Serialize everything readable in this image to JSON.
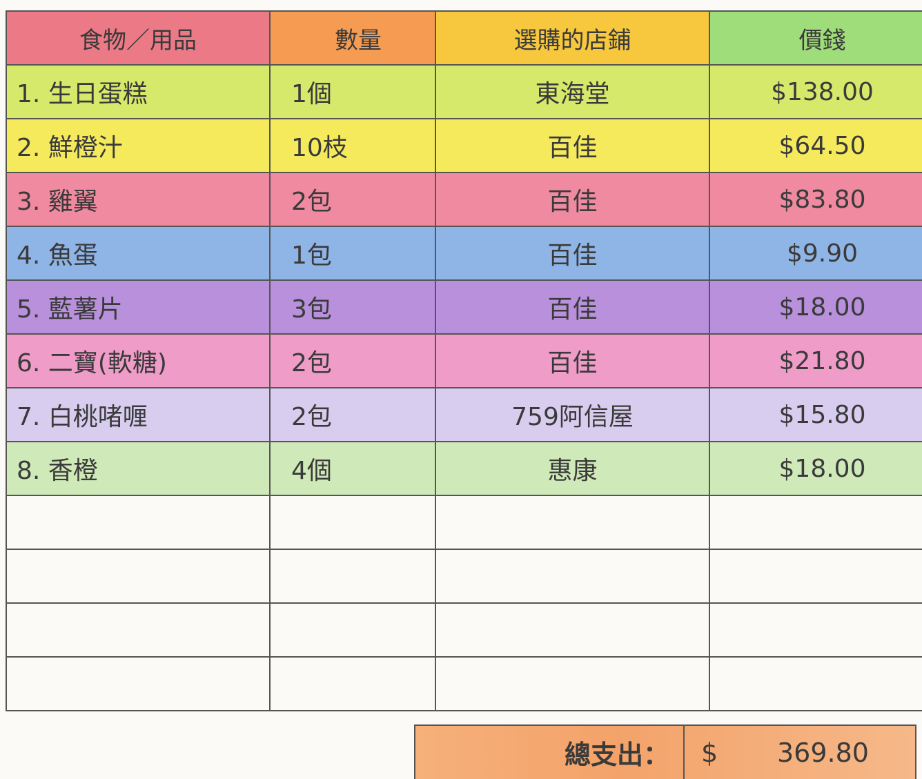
{
  "table": {
    "header": [
      "食物／用品",
      "數量",
      "選購的店鋪",
      "價錢"
    ],
    "rows": [
      [
        "1. 生日蛋糕",
        "1個",
        "東海堂",
        "$138.00"
      ],
      [
        "2. 鮮橙汁",
        "10枝",
        "百佳",
        "$64.50"
      ],
      [
        "3. 雞翼",
        "2包",
        "百佳",
        "$83.80"
      ],
      [
        "4. 魚蛋",
        "1包",
        "百佳",
        "$9.90"
      ],
      [
        "5. 藍薯片",
        "3包",
        "百佳",
        "$18.00"
      ],
      [
        "6. 二寶(軟糖)",
        "2包",
        "百佳",
        "$21.80"
      ],
      [
        "7. 白桃啫喱",
        "2包",
        "759阿信屋",
        "$15.80"
      ],
      [
        "8. 香橙",
        "4個",
        "惠康",
        "$18.00"
      ]
    ]
  },
  "total": {
    "label": "總支出：",
    "currency": "$",
    "amount": "369.80"
  }
}
